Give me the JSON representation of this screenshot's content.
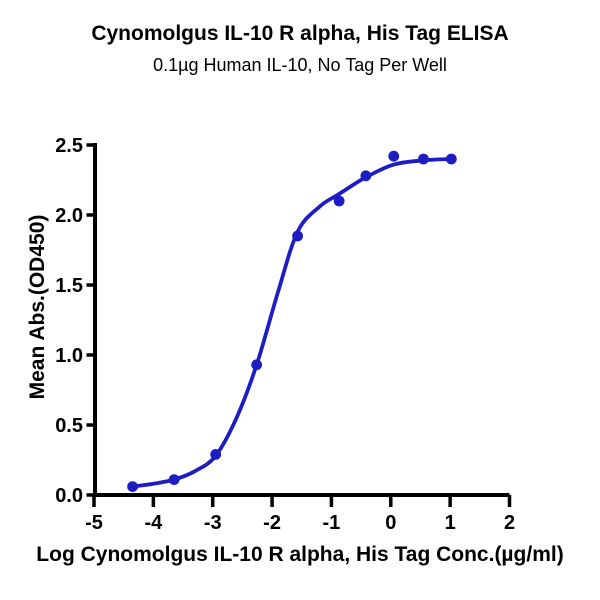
{
  "header": {
    "title": "Cynomolgus IL-10 R alpha, His Tag ELISA",
    "subtitle": "0.1µg Human IL-10, No Tag Per Well"
  },
  "colors": {
    "accent_blue": "#1d1dc3",
    "axis": "#000000",
    "background": "#ffffff"
  },
  "chart_data": {
    "type": "scatter",
    "title": "Cynomolgus IL-10 R alpha, His Tag ELISA",
    "subtitle": "0.1µg Human IL-10, No Tag Per Well",
    "xlabel": "Log Cynomolgus IL-10 R alpha, His Tag Conc.(µg/ml)",
    "ylabel": "Mean Abs.(OD450)",
    "xlim": [
      -5,
      2
    ],
    "ylim": [
      0,
      2.5
    ],
    "x_ticks": [
      -5,
      -4,
      -3,
      -2,
      -1,
      0,
      1,
      2
    ],
    "x_tick_labels": [
      "-5",
      "-4",
      "-3",
      "-2",
      "-1",
      "0",
      "1",
      "2"
    ],
    "y_ticks": [
      0,
      0.5,
      1,
      1.5,
      2,
      2.5
    ],
    "y_tick_labels": [
      "0.0",
      "0.5",
      "1.0",
      "1.5",
      "2.0",
      "2.5"
    ],
    "grid": false,
    "legend_position": "none",
    "series": [
      {
        "name": "Cynomolgus IL-10 R alpha, His Tag",
        "marker": "circle",
        "marker_color": "#1d1dc3",
        "line_color": "#1d1dc3",
        "x": [
          -4.35,
          -3.65,
          -2.95,
          -2.26,
          -1.57,
          -0.87,
          -0.42,
          0.05,
          0.55,
          1.02
        ],
        "y": [
          0.06,
          0.11,
          0.29,
          0.93,
          1.85,
          2.1,
          2.28,
          2.42,
          2.4,
          2.4
        ],
        "fit_curve": [
          [
            -4.35,
            0.06
          ],
          [
            -4.0,
            0.08
          ],
          [
            -3.65,
            0.11
          ],
          [
            -3.3,
            0.17
          ],
          [
            -2.95,
            0.28
          ],
          [
            -2.6,
            0.55
          ],
          [
            -2.26,
            0.93
          ],
          [
            -1.9,
            1.45
          ],
          [
            -1.57,
            1.88
          ],
          [
            -1.2,
            2.06
          ],
          [
            -0.87,
            2.15
          ],
          [
            -0.42,
            2.27
          ],
          [
            0.05,
            2.36
          ],
          [
            0.55,
            2.39
          ],
          [
            1.02,
            2.4
          ]
        ]
      }
    ]
  }
}
